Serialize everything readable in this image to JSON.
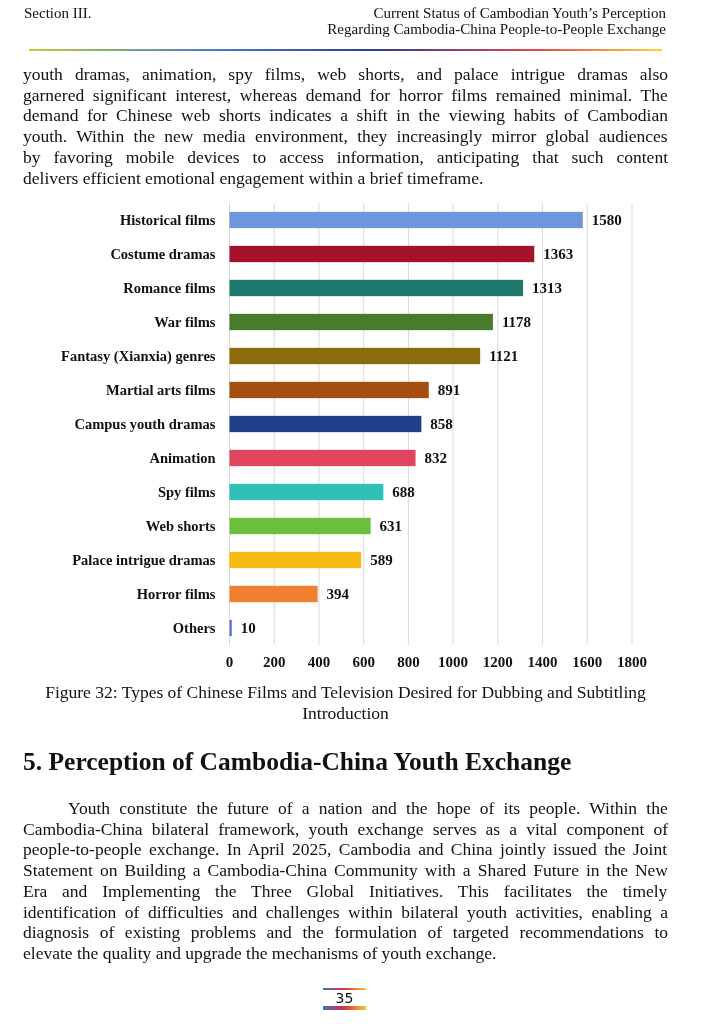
{
  "chart_data": {
    "type": "bar",
    "orientation": "horizontal",
    "title": "Figure 32: Types of Chinese Films and Television Desired for Dubbing and Subtitling\nIntroduction",
    "categories": [
      "Historical films",
      "Costume dramas",
      "Romance films",
      "War films",
      "Fantasy (Xianxia) genres",
      "Martial arts films",
      "Campus youth dramas",
      "Animation",
      "Spy films",
      "Web shorts",
      "Palace intrigue dramas",
      "Horror films",
      "Others"
    ],
    "values": [
      1580,
      1363,
      1313,
      1178,
      1121,
      891,
      858,
      832,
      688,
      631,
      589,
      394,
      10
    ],
    "colors": [
      "#6f95dc",
      "#a5122a",
      "#1f7a6e",
      "#4a7a2c",
      "#8a6d0a",
      "#a54e10",
      "#1f3f8a",
      "#e04560",
      "#30c0b8",
      "#6cbf3c",
      "#f4bc10",
      "#f07f30",
      "#4a74d0"
    ],
    "xlim": [
      0,
      1800
    ],
    "xticks": [
      0,
      200,
      400,
      600,
      800,
      1000,
      1200,
      1400,
      1600,
      1800
    ],
    "grid": "x",
    "data_labels": true,
    "annotations": [
      "Section III.",
      "Current Status of Cambodian Youth’s Perception",
      "Regarding Cambodia-China People-to-People Exchange",
      "youth dramas, animation, spy films, web shorts, and palace intrigue dramas also\ngarnered significant interest, whereas demand for horror films remained minimal. The\ndemand for Chinese web shorts indicates a shift in the viewing habits of Cambodian\nyouth. Within the new media environment, they increasingly mirror global audiences\nby favoring mobile devices to access information, anticipating that such content\ndelivers efficient emotional engagement within a brief timeframe.",
      "5. Perception of Cambodia-China Youth Exchange",
      "Youth constitute the future of a nation and the hope of its people. Within the\nCambodia-China bilateral framework, youth exchange serves as a vital component of\npeople-to-people exchange. In April 2025, Cambodia and China jointly issued the Joint\nStatement on Building a Cambodia-China Community with a Shared Future in the New\nEra and Implementing the Three Global Initiatives. This facilitates the timely\nidentification of difficulties and challenges within bilateral youth activities, enabling a\ndiagnosis of existing problems and the formulation of targeted recommendations to\nelevate the quality and upgrade the mechanisms of youth exchange.",
      "35"
    ]
  }
}
